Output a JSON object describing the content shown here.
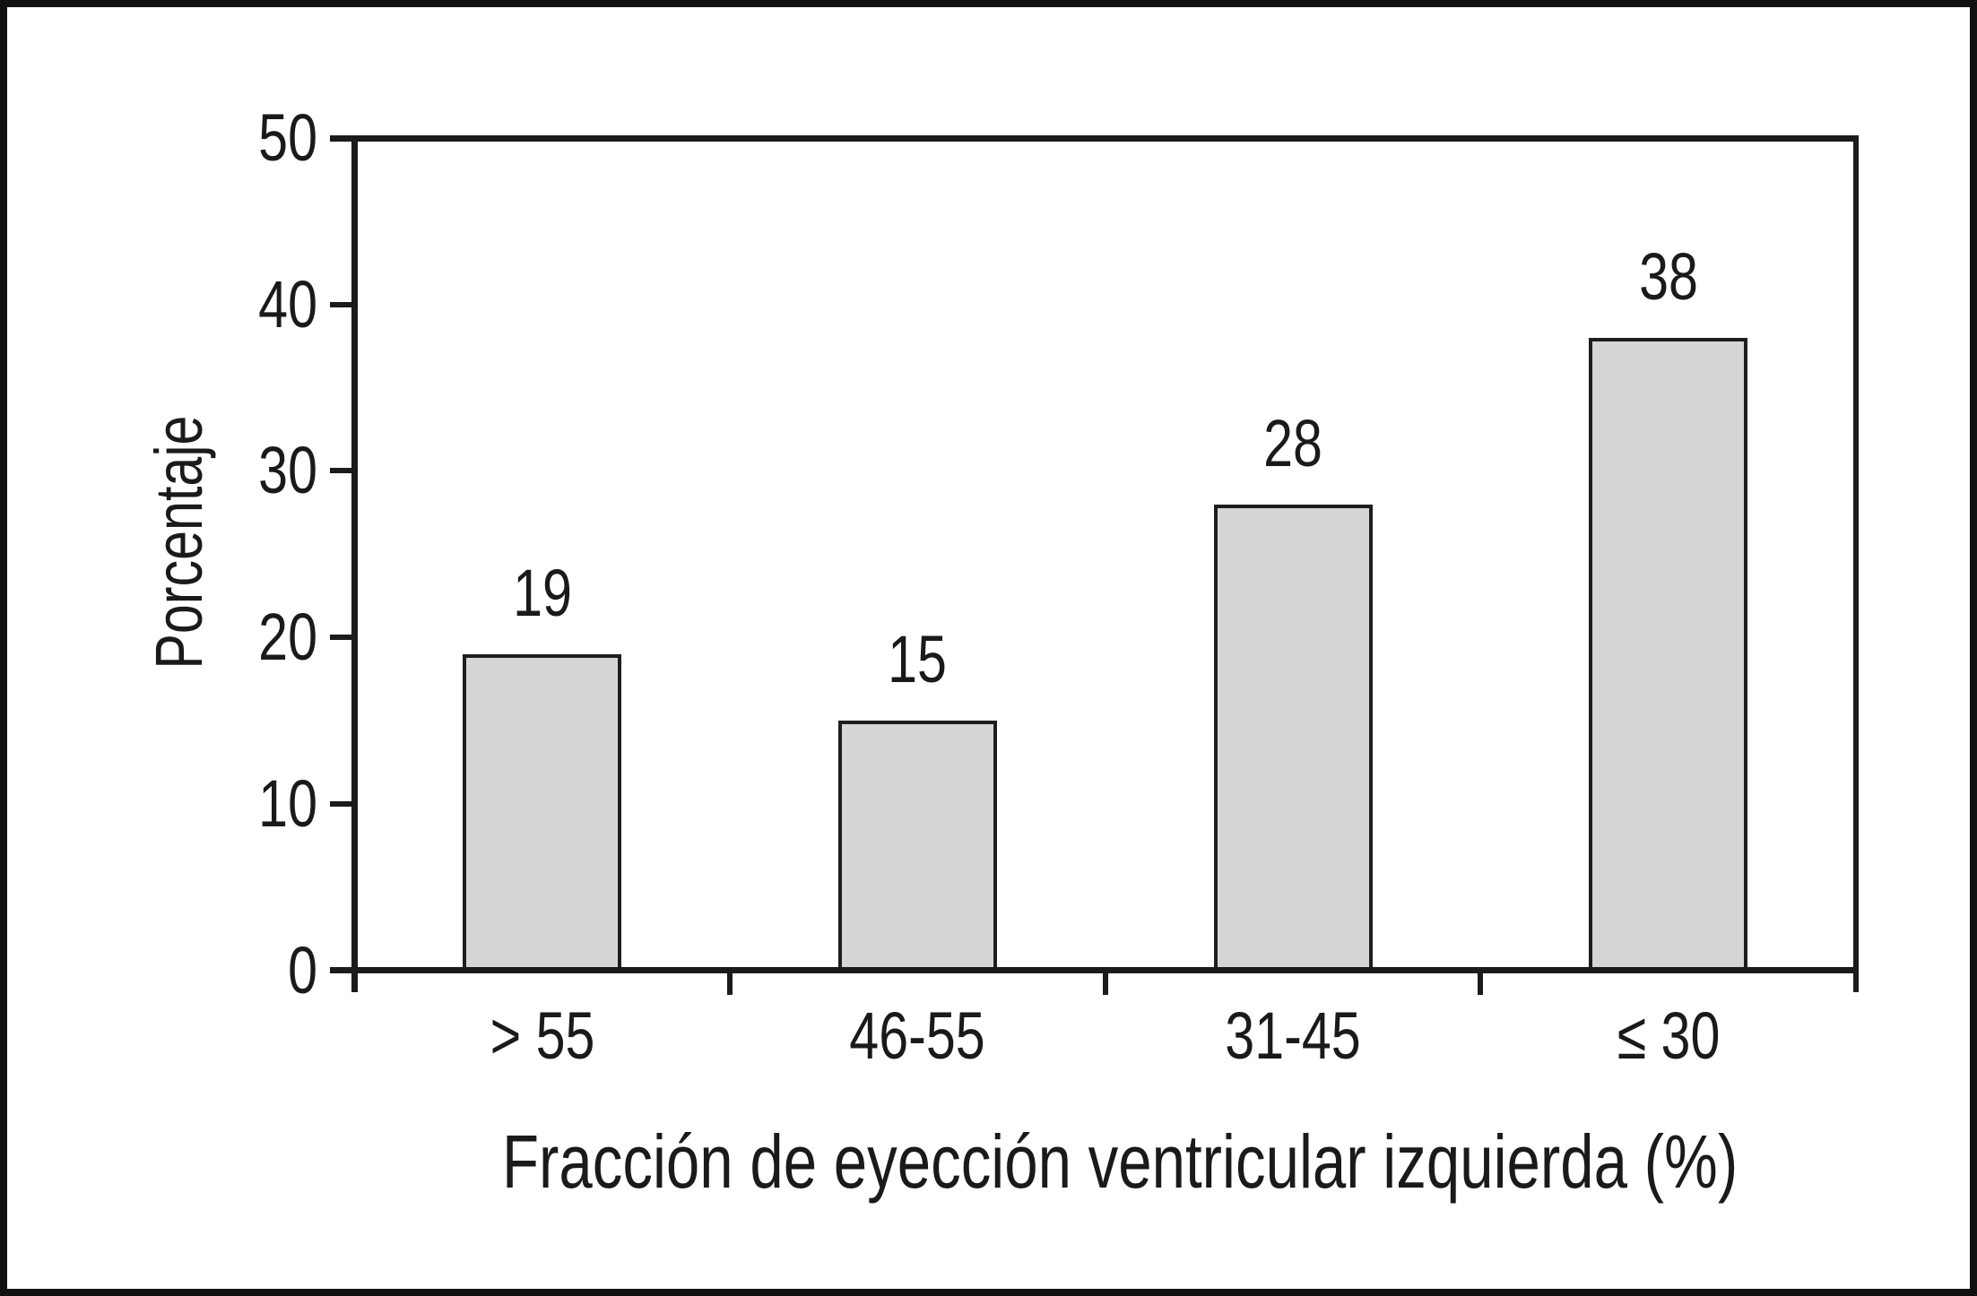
{
  "chart_data": {
    "type": "bar",
    "title": "",
    "categories": [
      "> 55",
      "46-55",
      "31-45",
      "≤ 30"
    ],
    "values": [
      19,
      15,
      28,
      38
    ],
    "value_labels": [
      "19",
      "15",
      "28",
      "38"
    ],
    "xlabel": "Fracción de eyección ventricular izquierda (%)",
    "ylabel": "Porcentaje",
    "ylim": [
      0,
      50
    ],
    "yticks": [
      0,
      10,
      20,
      30,
      40,
      50
    ],
    "grid": false,
    "legend": null,
    "bar_fill_color": "#d6d6d6",
    "bar_border_color": "#1e1e1e",
    "axis_color": "#1b1b1b",
    "background_color": "#ffffff",
    "frame": "left-top-right-bottom box, outer black figure border",
    "value_label_position": "above-bars"
  }
}
